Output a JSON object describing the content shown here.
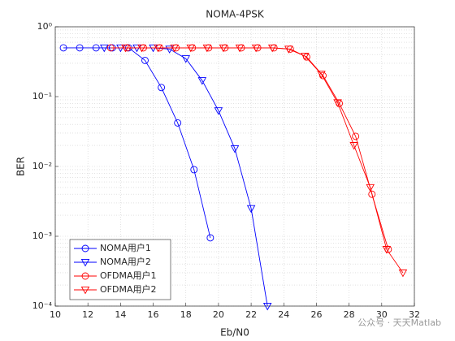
{
  "chart_data": {
    "type": "line",
    "title": "NOMA-4PSK",
    "xlabel": "Eb/N0",
    "ylabel": "BER",
    "ylog": true,
    "grid": true,
    "legend": "lower left",
    "xlim": [
      10,
      32
    ],
    "xticks": [
      10,
      12,
      14,
      16,
      18,
      20,
      22,
      24,
      26,
      28,
      30,
      32
    ],
    "ylim": [
      0.0001,
      1
    ],
    "yticks": [
      {
        "value": 0.0001,
        "label": "10⁻⁴"
      },
      {
        "value": 0.001,
        "label": "10⁻³"
      },
      {
        "value": 0.01,
        "label": "10⁻²"
      },
      {
        "value": 0.1,
        "label": "10⁻¹"
      },
      {
        "value": 1,
        "label": "10⁰"
      }
    ],
    "series": [
      {
        "name": "NOMA用户1",
        "color": "#0000ff",
        "marker": "circle",
        "x": [
          10.5,
          11.5,
          12.5,
          13.5,
          14.5,
          15.5,
          16.5,
          17.5,
          18.5,
          19.5
        ],
        "values": [
          0.5,
          0.5,
          0.5,
          0.5,
          0.5,
          0.33,
          0.135,
          0.042,
          0.009,
          0.00095
        ]
      },
      {
        "name": "NOMA用户2",
        "color": "#0000ff",
        "marker": "triangle-down",
        "x": [
          13,
          14,
          15,
          16,
          17,
          18,
          19,
          20,
          21,
          22,
          23
        ],
        "values": [
          0.5,
          0.5,
          0.5,
          0.5,
          0.48,
          0.35,
          0.17,
          0.063,
          0.018,
          0.0025,
          0.0001
        ]
      },
      {
        "name": "OFDMA用户1",
        "color": "#ff0000",
        "marker": "circle",
        "x": [
          13.4,
          14.4,
          15.4,
          16.4,
          17.4,
          18.4,
          19.4,
          20.4,
          21.4,
          22.4,
          23.4,
          24.4,
          25.4,
          26.4,
          27.4,
          28.4,
          29.4,
          30.4
        ],
        "values": [
          0.5,
          0.5,
          0.5,
          0.5,
          0.5,
          0.5,
          0.5,
          0.5,
          0.5,
          0.5,
          0.5,
          0.48,
          0.37,
          0.2,
          0.08,
          0.027,
          0.004,
          0.00065
        ]
      },
      {
        "name": "OFDMA用户2",
        "color": "#ff0000",
        "marker": "triangle-down",
        "x": [
          14.3,
          15.3,
          16.3,
          17.3,
          18.3,
          19.3,
          20.3,
          21.3,
          22.3,
          23.3,
          24.3,
          25.3,
          26.3,
          27.3,
          28.3,
          29.3,
          30.3,
          31.3
        ],
        "values": [
          0.5,
          0.5,
          0.5,
          0.5,
          0.5,
          0.5,
          0.5,
          0.5,
          0.5,
          0.5,
          0.48,
          0.38,
          0.21,
          0.082,
          0.02,
          0.005,
          0.00065,
          0.0003
        ]
      }
    ]
  },
  "watermark": "公众号 · 天天Matlab"
}
